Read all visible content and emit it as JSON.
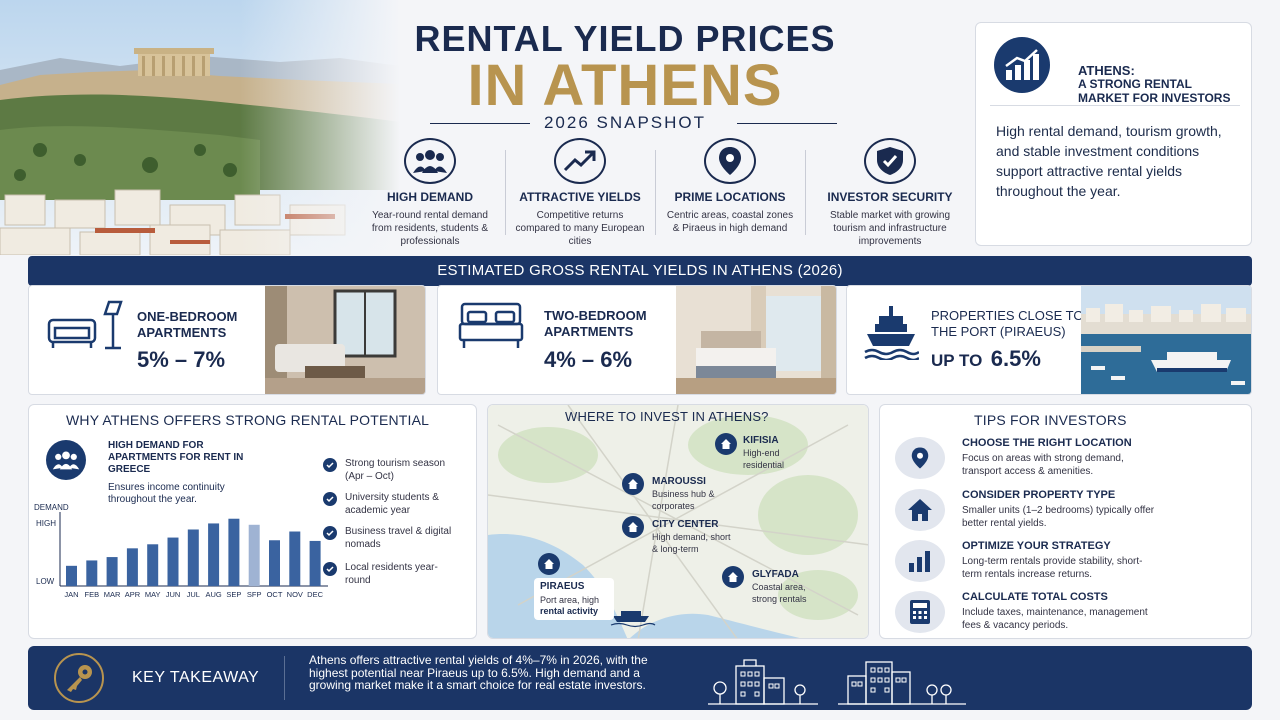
{
  "title": {
    "line1": "RENTAL YIELD PRICES",
    "line2": "IN ATHENS",
    "subtitle": "2026 SNAPSHOT"
  },
  "features": [
    {
      "icon": "people-icon",
      "title": "HIGH DEMAND",
      "desc": "Year-round rental demand from residents, students & professionals"
    },
    {
      "icon": "trend-up-icon",
      "title": "ATTRACTIVE YIELDS",
      "desc": "Competitive returns compared to many European cities"
    },
    {
      "icon": "location-pin-icon",
      "title": "PRIME LOCATIONS",
      "desc": "Centric areas, coastal zones & Piraeus in high demand"
    },
    {
      "icon": "shield-check-icon",
      "title": "INVESTOR SECURITY",
      "desc": "Stable market with growing tourism and infrastructure improvements"
    }
  ],
  "intro": {
    "heading1": "ATHENS:",
    "heading2": "A STRONG RENTAL MARKET FOR INVESTORS",
    "text": "High rental demand, tourism growth, and stable investment conditions support attractive rental yields throughout the year."
  },
  "yields": {
    "band": "ESTIMATED GROSS RENTAL YIELDS IN ATHENS (2026)",
    "cards": [
      {
        "label": "ONE-BEDROOM APARTMENTS",
        "value": "5% – 7%"
      },
      {
        "label": "TWO-BEDROOM APARTMENTS",
        "value": "4% – 6%"
      },
      {
        "label": "PROPERTIES CLOSE TO THE PORT (PIRAEUS)",
        "value_prefix": "UP TO",
        "value": "6.5%"
      }
    ]
  },
  "why": {
    "title": "WHY ATHENS OFFERS STRONG RENTAL POTENTIAL",
    "heading": "HIGH DEMAND FOR APARTMENTS FOR RENT IN GREECE",
    "subheading": "Ensures income continuity throughout the year.",
    "bullets": [
      "Strong tourism season (Apr – Oct)",
      "University students & academic year",
      "Business travel & digital nomads",
      "Local residents year-round"
    ]
  },
  "chart_data": {
    "type": "bar",
    "ylabel": "DEMAND",
    "ytick_labels": [
      "HIGH",
      "LOW"
    ],
    "categories": [
      "JAN",
      "FEB",
      "MAR",
      "APR",
      "MAY",
      "JUN",
      "JUL",
      "AUG",
      "SEP",
      "SFP",
      "OCT",
      "NOV",
      "DEC"
    ],
    "values": [
      3,
      3.8,
      4.3,
      5.6,
      6.2,
      7.2,
      8.4,
      9.3,
      10,
      9.1,
      6.8,
      8.1,
      6.7
    ],
    "ylim": [
      0,
      11
    ],
    "bar_color": "#3a63a0",
    "highlight_color": "#9fb3d3",
    "highlight_index": 9
  },
  "map": {
    "title": "WHERE TO INVEST IN ATHENS?",
    "places": [
      {
        "name": "KIFISIA",
        "desc": "High-end residential"
      },
      {
        "name": "MAROUSSI",
        "desc": "Business hub & corporates"
      },
      {
        "name": "CITY CENTER",
        "desc": "High demand, short & long-term"
      },
      {
        "name": "GLYFADA",
        "desc": "Coastal area, strong rentals"
      },
      {
        "name": "PIRAEUS",
        "desc": "Port area, high",
        "desc2": "rental activity"
      }
    ]
  },
  "tips": {
    "title": "TIPS FOR INVESTORS",
    "items": [
      {
        "icon": "location-pin-icon",
        "title": "CHOOSE THE RIGHT LOCATION",
        "desc": "Focus on areas with strong demand, transport access & amenities."
      },
      {
        "icon": "house-icon",
        "title": "CONSIDER PROPERTY TYPE",
        "desc": "Smaller units (1–2 bedrooms) typically offer better rental yields."
      },
      {
        "icon": "bar-chart-icon",
        "title": "OPTIMIZE YOUR STRATEGY",
        "desc": "Long-term rentals provide stability, short-term rentals increase returns."
      },
      {
        "icon": "calculator-icon",
        "title": "CALCULATE TOTAL COSTS",
        "desc": "Include taxes, maintenance, management fees & vacancy periods."
      }
    ]
  },
  "takeaway": {
    "label": "KEY TAKEAWAY",
    "text": "Athens offers attractive rental yields of 4%–7% in 2026, with the highest potential near Piraeus up to 6.5%. High demand and a growing market make it a smart choice for real estate investors."
  },
  "colors": {
    "navy": "#1b3566",
    "gold": "#b8944f"
  }
}
